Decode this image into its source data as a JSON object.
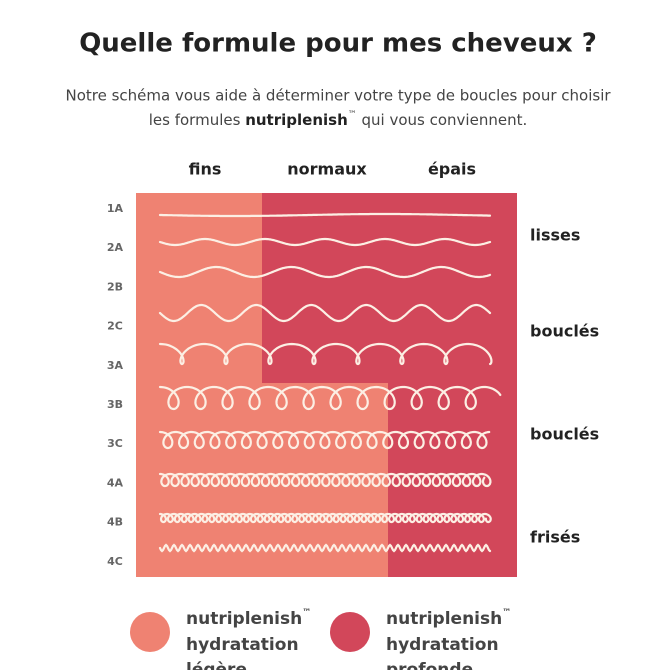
{
  "header": {
    "title": "Quelle formule pour mes cheveux ?",
    "subtitle_line1": "Notre schéma vous aide à déterminer votre type de boucles pour choisir",
    "subtitle_line2_start": "les formules ",
    "subtitle_brand": "nutriplenish",
    "subtitle_tm": "™",
    "subtitle_line2_end": " qui vous conviennent."
  },
  "chart": {
    "columns": [
      "fins",
      "normaux",
      "épais"
    ],
    "rows": [
      "1A",
      "2A",
      "2B",
      "2C",
      "3A",
      "3B",
      "3C",
      "4A",
      "4B",
      "4C"
    ],
    "groups": [
      "lisses",
      "bouclés",
      "bouclés",
      "frisés"
    ]
  },
  "legend": [
    {
      "brand": "nutriplenish",
      "tm": "™",
      "line1": "hydratation",
      "line2": "légère"
    },
    {
      "brand": "nutriplenish",
      "tm": "™",
      "line1": "hydratation",
      "line2": "profonde"
    }
  ]
}
